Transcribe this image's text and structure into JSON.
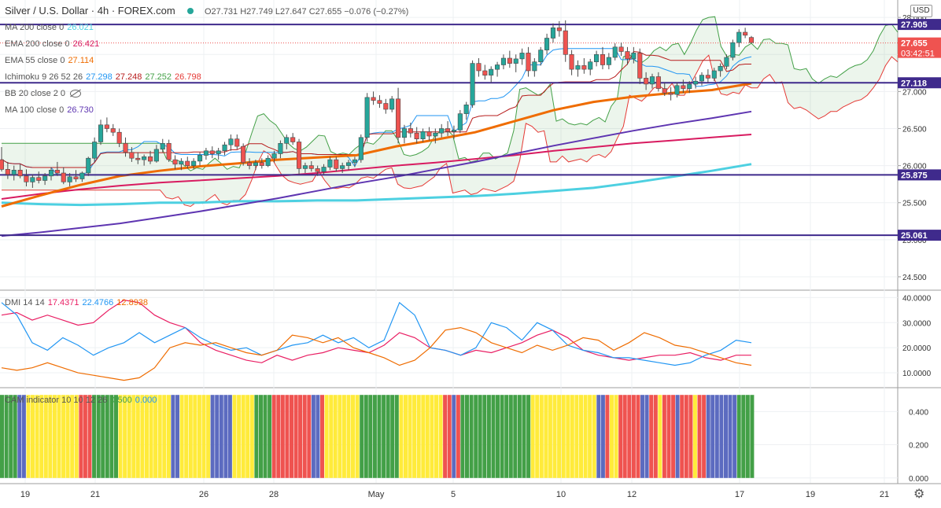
{
  "header": {
    "symbol": "Silver / U.S. Dollar · 4h · FOREX.com",
    "ohlc": "O27.731 H27.749 L27.647 C27.655 −0.076 (−0.27%)",
    "currency": "USD"
  },
  "legend": [
    {
      "name": "MA 200 close 0",
      "values": [
        "26.021"
      ],
      "colors": [
        "#4dd0e1"
      ]
    },
    {
      "name": "EMA 200 close 0",
      "values": [
        "26.421"
      ],
      "colors": [
        "#d81b60"
      ]
    },
    {
      "name": "EMA 55 close 0",
      "values": [
        "27.114"
      ],
      "colors": [
        "#ef6c00"
      ]
    },
    {
      "name": "Ichimoku 9 26 52 26",
      "values": [
        "27.298",
        "27.248",
        "27.252",
        "26.798"
      ],
      "colors": [
        "#2196f3",
        "#b71c1c",
        "#43a047",
        "#e53935"
      ]
    },
    {
      "name": "BB 20 close 2 0",
      "values": [],
      "colors": []
    },
    {
      "name": "MA 100 close 0",
      "values": [
        "26.730"
      ],
      "colors": [
        "#5e35b1"
      ]
    }
  ],
  "dmi_legend": {
    "name": "DMI 14 14",
    "values": [
      "17.4371",
      "22.4766",
      "12.8938"
    ],
    "colors": [
      "#e91e63",
      "#2196f3",
      "#ef6c00"
    ]
  },
  "cam_legend": {
    "name": "CAM indicator 10 10 12 26",
    "values": [
      "0.500",
      "0.000"
    ],
    "colors": [
      "#43a047",
      "#2196f3"
    ]
  },
  "price_labels": [
    {
      "text": "27.905",
      "value": 27.905,
      "kind": "hline"
    },
    {
      "text": "27.655",
      "value": 27.655,
      "kind": "price",
      "timer": "03:42:51"
    },
    {
      "text": "27.118",
      "value": 27.118,
      "kind": "hline"
    },
    {
      "text": "25.875",
      "value": 25.875,
      "kind": "hline"
    },
    {
      "text": "25.061",
      "value": 25.061,
      "kind": "hline"
    }
  ],
  "chart_data": [
    {
      "type": "candlestick",
      "title": "Silver / U.S. Dollar · 4h · FOREX.com",
      "y_ticks": [
        24.5,
        25.0,
        25.5,
        26.0,
        26.5,
        27.0,
        27.5,
        28.0
      ],
      "y_tick_labels": [
        "24.500",
        "25.000",
        "25.500",
        "26.000",
        "26.500",
        "27.000",
        "27.500",
        "28.000"
      ],
      "ylim": [
        24.33,
        28.15
      ],
      "x_tick_labels": [
        "19",
        "21",
        "26",
        "28",
        "May",
        "5",
        "10",
        "12",
        "17",
        "19",
        "21"
      ],
      "horizontal_levels": [
        27.905,
        27.118,
        25.875,
        25.061
      ],
      "last_price": 27.655,
      "candles": [
        [
          26.08,
          26.25,
          25.92,
          25.95
        ],
        [
          25.95,
          26.05,
          25.82,
          25.88
        ],
        [
          25.88,
          26.0,
          25.8,
          25.94
        ],
        [
          25.94,
          26.02,
          25.83,
          25.86
        ],
        [
          25.86,
          25.95,
          25.72,
          25.78
        ],
        [
          25.78,
          25.88,
          25.7,
          25.84
        ],
        [
          25.84,
          25.92,
          25.76,
          25.8
        ],
        [
          25.8,
          25.9,
          25.74,
          25.86
        ],
        [
          25.86,
          25.98,
          25.8,
          25.94
        ],
        [
          25.94,
          26.05,
          25.86,
          25.9
        ],
        [
          25.9,
          25.98,
          25.75,
          25.78
        ],
        [
          25.78,
          25.9,
          25.72,
          25.85
        ],
        [
          25.85,
          25.94,
          25.78,
          25.82
        ],
        [
          25.82,
          25.92,
          25.78,
          25.9
        ],
        [
          25.9,
          26.12,
          25.86,
          26.1
        ],
        [
          26.1,
          26.38,
          26.05,
          26.32
        ],
        [
          26.32,
          26.62,
          26.28,
          26.55
        ],
        [
          26.55,
          26.65,
          26.45,
          26.5
        ],
        [
          26.5,
          26.56,
          26.4,
          26.45
        ],
        [
          26.45,
          26.5,
          26.25,
          26.3
        ],
        [
          26.3,
          26.38,
          26.12,
          26.18
        ],
        [
          26.18,
          26.25,
          26.05,
          26.1
        ],
        [
          26.1,
          26.18,
          26.02,
          26.08
        ],
        [
          26.08,
          26.15,
          26.0,
          26.12
        ],
        [
          26.12,
          26.2,
          26.02,
          26.06
        ],
        [
          26.06,
          26.28,
          26.04,
          26.22
        ],
        [
          26.22,
          26.36,
          26.18,
          26.3
        ],
        [
          26.3,
          26.35,
          26.05,
          26.08
        ],
        [
          26.08,
          26.14,
          25.95,
          26.02
        ],
        [
          26.02,
          26.1,
          25.94,
          26.06
        ],
        [
          26.06,
          26.12,
          25.96,
          26.0
        ],
        [
          26.0,
          26.1,
          25.95,
          26.06
        ],
        [
          26.06,
          26.18,
          26.0,
          26.14
        ],
        [
          26.14,
          26.24,
          26.08,
          26.2
        ],
        [
          26.2,
          26.26,
          26.1,
          26.16
        ],
        [
          26.16,
          26.24,
          26.08,
          26.2
        ],
        [
          26.2,
          26.32,
          26.14,
          26.28
        ],
        [
          26.28,
          26.42,
          26.2,
          26.36
        ],
        [
          26.36,
          26.42,
          26.22,
          26.26
        ],
        [
          26.26,
          26.3,
          26.0,
          26.04
        ],
        [
          26.04,
          26.1,
          25.95,
          26.0
        ],
        [
          26.0,
          26.08,
          25.94,
          26.04
        ],
        [
          26.04,
          26.1,
          25.96,
          26.0
        ],
        [
          26.0,
          26.14,
          25.98,
          26.1
        ],
        [
          26.1,
          26.2,
          26.04,
          26.16
        ],
        [
          26.16,
          26.34,
          26.1,
          26.3
        ],
        [
          26.3,
          26.42,
          26.22,
          26.38
        ],
        [
          26.38,
          26.44,
          26.28,
          26.32
        ],
        [
          26.32,
          26.36,
          25.88,
          25.96
        ],
        [
          25.96,
          26.04,
          25.9,
          26.0
        ],
        [
          26.0,
          26.06,
          25.92,
          25.96
        ],
        [
          25.96,
          26.0,
          25.86,
          25.92
        ],
        [
          25.92,
          26.02,
          25.88,
          25.98
        ],
        [
          25.98,
          26.12,
          25.94,
          26.08
        ],
        [
          26.08,
          26.12,
          25.92,
          25.96
        ],
        [
          25.96,
          26.04,
          25.9,
          26.0
        ],
        [
          26.0,
          26.08,
          25.94,
          26.04
        ],
        [
          26.04,
          26.12,
          25.98,
          26.08
        ],
        [
          26.08,
          26.42,
          26.04,
          26.38
        ],
        [
          26.38,
          26.98,
          26.32,
          26.92
        ],
        [
          26.92,
          27.0,
          26.82,
          26.88
        ],
        [
          26.88,
          26.95,
          26.78,
          26.84
        ],
        [
          26.84,
          26.9,
          26.7,
          26.76
        ],
        [
          26.76,
          26.94,
          26.72,
          26.9
        ],
        [
          26.9,
          27.05,
          26.3,
          26.38
        ],
        [
          26.38,
          26.55,
          26.3,
          26.5
        ],
        [
          26.5,
          26.58,
          26.38,
          26.44
        ],
        [
          26.44,
          26.52,
          26.3,
          26.36
        ],
        [
          26.36,
          26.5,
          26.32,
          26.46
        ],
        [
          26.46,
          26.52,
          26.34,
          26.4
        ],
        [
          26.4,
          26.5,
          26.3,
          26.44
        ],
        [
          26.44,
          26.56,
          26.38,
          26.5
        ],
        [
          26.5,
          26.6,
          26.4,
          26.46
        ],
        [
          26.46,
          26.54,
          26.36,
          26.48
        ],
        [
          26.48,
          26.75,
          26.44,
          26.7
        ],
        [
          26.7,
          26.86,
          26.62,
          26.82
        ],
        [
          26.82,
          27.42,
          26.78,
          27.38
        ],
        [
          27.38,
          27.45,
          27.2,
          27.28
        ],
        [
          27.28,
          27.36,
          27.16,
          27.22
        ],
        [
          27.22,
          27.34,
          27.12,
          27.3
        ],
        [
          27.3,
          27.4,
          27.2,
          27.36
        ],
        [
          27.36,
          27.5,
          27.3,
          27.45
        ],
        [
          27.45,
          27.55,
          27.32,
          27.38
        ],
        [
          27.38,
          27.5,
          27.26,
          27.44
        ],
        [
          27.44,
          27.58,
          27.36,
          27.52
        ],
        [
          27.52,
          27.6,
          27.2,
          27.28
        ],
        [
          27.28,
          27.45,
          27.2,
          27.4
        ],
        [
          27.4,
          27.6,
          27.35,
          27.56
        ],
        [
          27.56,
          27.78,
          27.5,
          27.72
        ],
        [
          27.72,
          27.92,
          27.66,
          27.86
        ],
        [
          27.86,
          27.95,
          27.74,
          27.82
        ],
        [
          27.82,
          27.96,
          27.4,
          27.5
        ],
        [
          27.5,
          27.56,
          27.22,
          27.3
        ],
        [
          27.3,
          27.42,
          27.2,
          27.35
        ],
        [
          27.35,
          27.45,
          27.24,
          27.3
        ],
        [
          27.3,
          27.44,
          27.22,
          27.4
        ],
        [
          27.4,
          27.55,
          27.34,
          27.5
        ],
        [
          27.5,
          27.6,
          27.3,
          27.36
        ],
        [
          27.36,
          27.52,
          27.3,
          27.46
        ],
        [
          27.46,
          27.65,
          27.42,
          27.6
        ],
        [
          27.6,
          27.66,
          27.48,
          27.54
        ],
        [
          27.54,
          27.6,
          27.36,
          27.44
        ],
        [
          27.44,
          27.6,
          27.38,
          27.52
        ],
        [
          27.52,
          27.58,
          27.1,
          27.18
        ],
        [
          27.18,
          27.26,
          27.02,
          27.1
        ],
        [
          27.1,
          27.24,
          27.04,
          27.2
        ],
        [
          27.2,
          27.26,
          27.0,
          27.04
        ],
        [
          27.04,
          27.12,
          26.94,
          26.98
        ],
        [
          26.98,
          27.06,
          26.88,
          26.96
        ],
        [
          26.96,
          27.12,
          26.92,
          27.08
        ],
        [
          27.08,
          27.16,
          26.98,
          27.04
        ],
        [
          27.04,
          27.14,
          26.98,
          27.1
        ],
        [
          27.1,
          27.2,
          27.04,
          27.14
        ],
        [
          27.14,
          27.26,
          27.08,
          27.22
        ],
        [
          27.22,
          27.3,
          27.12,
          27.18
        ],
        [
          27.18,
          27.32,
          27.14,
          27.28
        ],
        [
          27.28,
          27.38,
          27.2,
          27.34
        ],
        [
          27.34,
          27.5,
          27.3,
          27.46
        ],
        [
          27.46,
          27.7,
          27.42,
          27.66
        ],
        [
          27.66,
          27.84,
          27.6,
          27.8
        ],
        [
          27.8,
          27.86,
          27.72,
          27.76
        ],
        [
          27.73,
          27.75,
          27.65,
          27.66
        ]
      ],
      "series": [
        {
          "name": "MA 200 close 0",
          "color": "#4dd0e1",
          "values": [
            25.5,
            25.48,
            25.47,
            25.48,
            25.5,
            25.5,
            25.52,
            25.52,
            25.53,
            25.53,
            25.55,
            25.57,
            25.59,
            25.62,
            25.66,
            25.7,
            25.77,
            25.85,
            25.93,
            26.02
          ]
        },
        {
          "name": "EMA 200 close 0",
          "color": "#d81b60",
          "values": [
            25.55,
            25.62,
            25.68,
            25.73,
            25.77,
            25.8,
            25.83,
            25.86,
            25.9,
            25.95,
            26.0,
            26.04,
            26.09,
            26.14,
            26.2,
            26.25,
            26.3,
            26.34,
            26.38,
            26.42
          ]
        },
        {
          "name": "EMA 55 close 0",
          "color": "#ef6c00",
          "values": [
            25.45,
            25.6,
            25.74,
            25.86,
            25.93,
            25.99,
            26.03,
            26.08,
            26.11,
            26.14,
            26.26,
            26.35,
            26.45,
            26.6,
            26.75,
            26.86,
            26.93,
            26.98,
            27.02,
            27.11
          ]
        },
        {
          "name": "MA 100 close 0",
          "color": "#5e35b1",
          "values": [
            25.05,
            25.1,
            25.16,
            25.22,
            25.3,
            25.38,
            25.47,
            25.56,
            25.66,
            25.76,
            25.85,
            25.95,
            26.05,
            26.16,
            26.27,
            26.37,
            26.47,
            26.56,
            26.64,
            26.73
          ]
        }
      ]
    },
    {
      "type": "line",
      "title": "DMI 14 14",
      "y_ticks": [
        10,
        20,
        30,
        40
      ],
      "y_tick_labels": [
        "10.0000",
        "20.0000",
        "30.0000",
        "40.0000"
      ],
      "ylim": [
        5,
        42
      ],
      "series": [
        {
          "name": "+DI",
          "color": "#e91e63",
          "values": [
            33,
            34,
            31,
            33,
            31,
            29,
            30,
            35,
            39,
            38,
            33,
            30,
            28,
            22,
            19,
            17,
            15,
            14,
            17,
            15,
            17,
            18,
            20,
            19,
            18,
            21,
            26,
            24,
            20,
            19,
            17,
            19,
            18,
            20,
            22,
            25,
            27,
            24,
            19,
            17,
            16,
            15,
            16,
            17,
            17,
            18,
            16,
            15,
            17,
            17
          ]
        },
        {
          "name": "-DI",
          "color": "#2196f3",
          "values": [
            38,
            33,
            22,
            19,
            24,
            21,
            17,
            20,
            22,
            26,
            22,
            25,
            28,
            24,
            21,
            19,
            20,
            17,
            19,
            21,
            22,
            25,
            22,
            24,
            20,
            23,
            38,
            33,
            20,
            19,
            17,
            20,
            30,
            28,
            23,
            30,
            27,
            21,
            19,
            18,
            16,
            16,
            15,
            14,
            13,
            14,
            17,
            19,
            23,
            22
          ]
        },
        {
          "name": "ADX",
          "color": "#ef6c00",
          "values": [
            12,
            11,
            12,
            14,
            12,
            10,
            9,
            8,
            7,
            8,
            12,
            20,
            22,
            21,
            22,
            20,
            18,
            17,
            19,
            25,
            24,
            22,
            24,
            20,
            18,
            16,
            13,
            15,
            20,
            27,
            28,
            26,
            22,
            20,
            18,
            21,
            19,
            21,
            24,
            23,
            19,
            22,
            26,
            24,
            21,
            20,
            18,
            16,
            14,
            13
          ]
        }
      ]
    },
    {
      "type": "bar",
      "title": "CAM indicator 10 10 12 26",
      "y_ticks": [
        0.0,
        0.2,
        0.4
      ],
      "y_tick_labels": [
        "0.000",
        "0.200",
        "0.400"
      ],
      "ylim": [
        -0.02,
        0.52
      ],
      "bar_value": 0.5,
      "color_key": {
        "G": "#43a047",
        "Y": "#ffeb3b",
        "R": "#ef5350",
        "B": "#5c6bc0"
      },
      "bars": "GGGGBBYYYYYYYYYYYYRRRGGGGGGYYYYYYYYYYYYBBYYYYYYYBBBBBYYYYYGGGGRRRRRRRRRBBRYYYYYYYYGGGGGGGGGYYYYYYYYYYRRBRGGGGGGGGGGGGGGGGYYYYYYYYYYYYYYYBBRYYRRRRRBBRRYRRRBRRRYRRBBBBBBBGGGG"
    }
  ]
}
